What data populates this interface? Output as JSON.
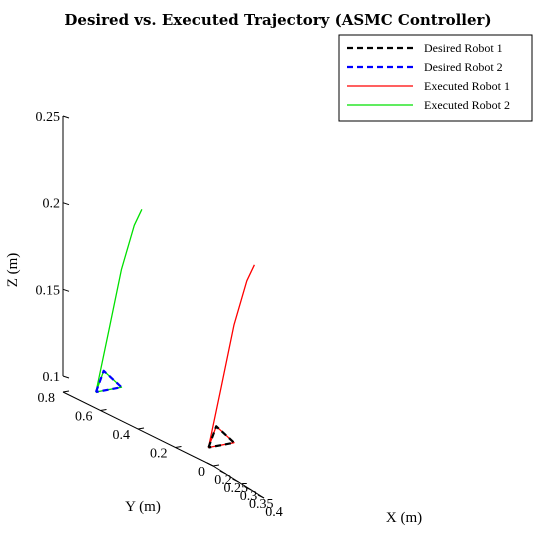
{
  "chart_data": {
    "type": "line",
    "projection": "3d",
    "title": "Desired vs. Executed Trajectory (ASMC Controller)",
    "xlabel": "X (m)",
    "ylabel": "Y (m)",
    "zlabel": "Z (m)",
    "xlim": [
      0.2,
      0.4
    ],
    "ylim": [
      0,
      0.8
    ],
    "zlim": [
      0.1,
      0.25
    ],
    "x_ticks": [
      "0.2",
      "0.25",
      "0.3",
      "0.35",
      "0.4"
    ],
    "y_ticks": [
      "0",
      "0.2",
      "0.4",
      "0.6",
      "0.8"
    ],
    "z_ticks": [
      "0.1",
      "0.15",
      "0.2",
      "0.25"
    ],
    "grid": false,
    "legend_position": "top-right",
    "series": [
      {
        "name": "Desired Robot 1",
        "color": "#000000",
        "style": "dashed",
        "x": [
          0.2,
          0.23,
          0.3,
          0.2
        ],
        "y": [
          0.2,
          0.2,
          0.2,
          0.2
        ],
        "z": [
          0.1,
          0.115,
          0.112,
          0.1
        ]
      },
      {
        "name": "Desired Robot 2",
        "color": "#0000ff",
        "style": "dashed",
        "x": [
          0.2,
          0.23,
          0.3,
          0.2
        ],
        "y": [
          0.8,
          0.8,
          0.8,
          0.8
        ],
        "z": [
          0.1,
          0.115,
          0.112,
          0.1
        ]
      },
      {
        "name": "Executed Robot 1",
        "color": "#ff0000",
        "style": "solid",
        "x": [
          0.2,
          0.23,
          0.3,
          0.2,
          0.25,
          0.3,
          0.35,
          0.38
        ],
        "y": [
          0.2,
          0.2,
          0.2,
          0.2,
          0.2,
          0.2,
          0.2,
          0.2
        ],
        "z": [
          0.1,
          0.115,
          0.112,
          0.1,
          0.14,
          0.18,
          0.21,
          0.222
        ]
      },
      {
        "name": "Executed Robot 2",
        "color": "#00e000",
        "style": "solid",
        "x": [
          0.2,
          0.23,
          0.3,
          0.2,
          0.25,
          0.3,
          0.35,
          0.38
        ],
        "y": [
          0.8,
          0.8,
          0.8,
          0.8,
          0.8,
          0.8,
          0.8,
          0.8
        ],
        "z": [
          0.1,
          0.115,
          0.112,
          0.1,
          0.14,
          0.18,
          0.21,
          0.222
        ]
      }
    ]
  }
}
